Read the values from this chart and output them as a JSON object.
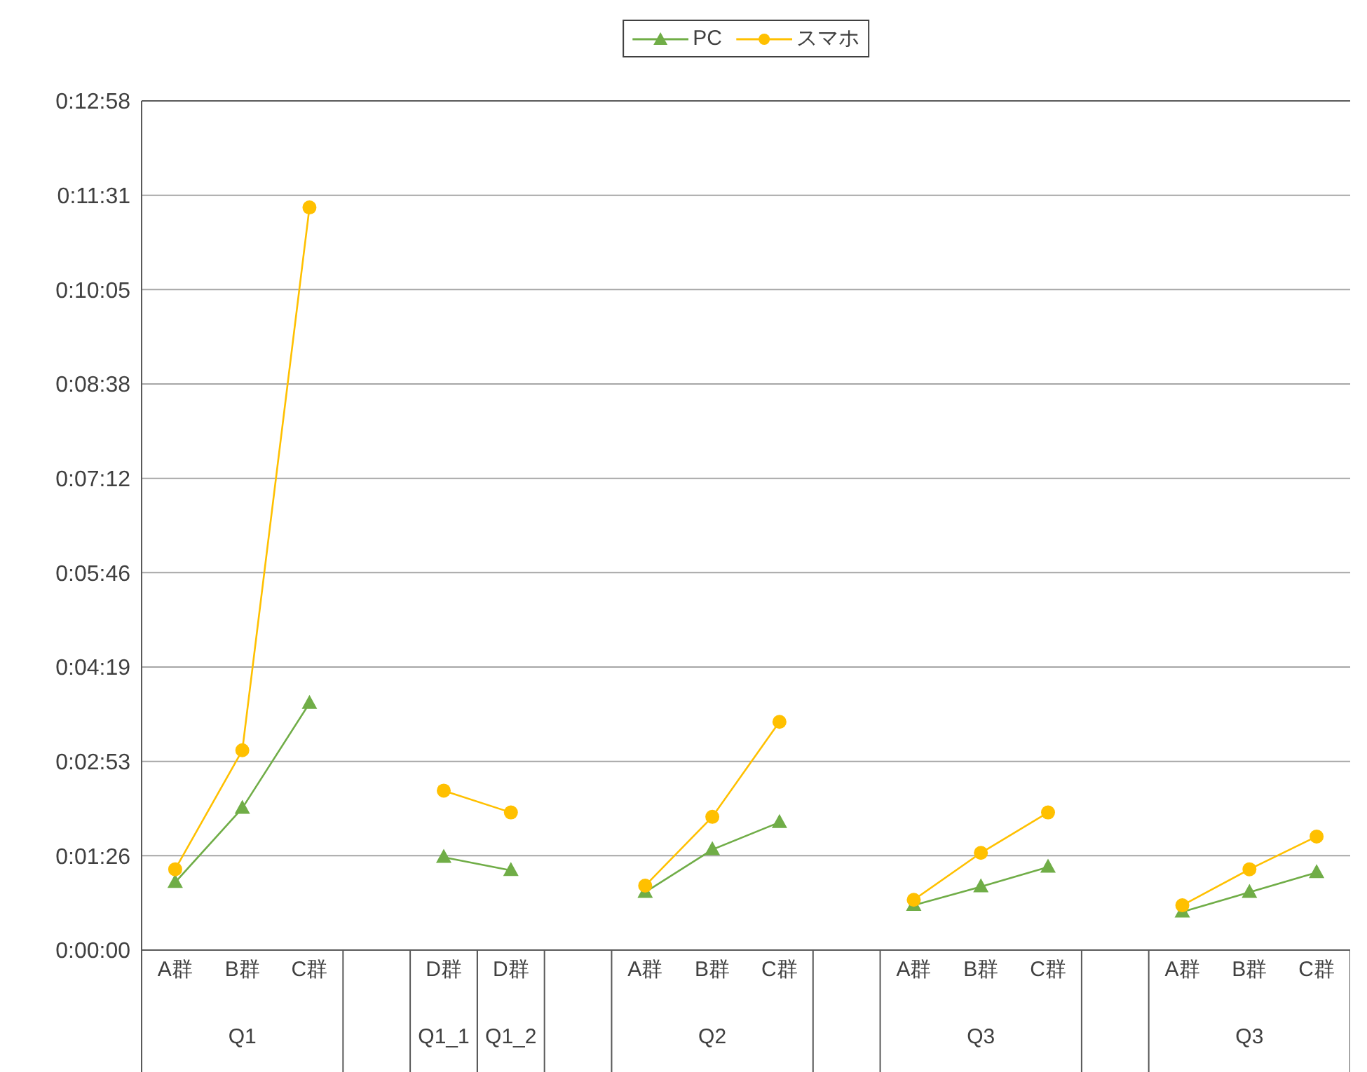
{
  "chart_data": {
    "type": "line",
    "categories": [
      "A群",
      "B群",
      "C群",
      null,
      "D群",
      "D群",
      null,
      "A群",
      "B群",
      "C群",
      null,
      "A群",
      "B群",
      "C群",
      null,
      "A群",
      "B群",
      "C群"
    ],
    "series": [
      {
        "name": "PC",
        "color": "#70ad47",
        "marker": "triangle",
        "values": [
          62,
          130,
          226,
          null,
          85,
          73,
          null,
          53,
          92,
          117,
          null,
          41,
          58,
          76,
          null,
          35,
          53,
          71
        ]
      },
      {
        "name": "スマホ",
        "color": "#ffc000",
        "marker": "circle",
        "values": [
          74,
          183,
          680,
          null,
          146,
          126,
          null,
          59,
          122,
          209,
          null,
          46,
          89,
          126,
          null,
          41,
          74,
          104
        ]
      }
    ],
    "ylim": [
      0,
      777.6
    ],
    "yticks": [
      {
        "value": 0,
        "label": "0:00:00"
      },
      {
        "value": 86.4,
        "label": "0:01:26"
      },
      {
        "value": 172.8,
        "label": "0:02:53"
      },
      {
        "value": 259.2,
        "label": "0:04:19"
      },
      {
        "value": 345.6,
        "label": "0:05:46"
      },
      {
        "value": 432,
        "label": "0:07:12"
      },
      {
        "value": 518.4,
        "label": "0:08:38"
      },
      {
        "value": 604.8,
        "label": "0:10:05"
      },
      {
        "value": 691.2,
        "label": "0:11:31"
      },
      {
        "value": 777.6,
        "label": "0:12:58"
      }
    ],
    "grid": "y",
    "legend": "top",
    "annotations": [
      "Q1",
      "Q1_1",
      "Q1_2",
      "Q2",
      "Q3",
      "Q3"
    ]
  }
}
